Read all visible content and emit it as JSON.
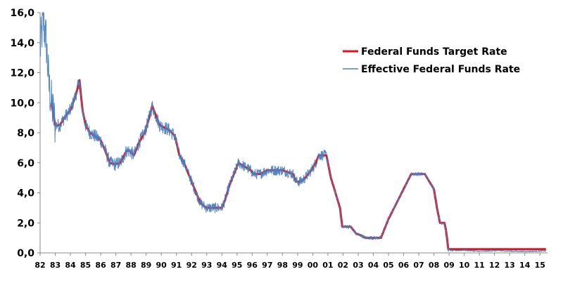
{
  "chart_data": {
    "type": "line",
    "title": "",
    "xlabel": "",
    "ylabel": "",
    "ylim": [
      0,
      16
    ],
    "y_ticks": [
      0,
      2,
      4,
      6,
      8,
      10,
      12,
      14,
      16
    ],
    "y_tick_labels": [
      "0,0",
      "2,0",
      "4,0",
      "6,0",
      "8,0",
      "10,0",
      "12,0",
      "14,0",
      "16,0"
    ],
    "xlim": [
      1982,
      2015.5
    ],
    "x_ticks": [
      1982,
      1983,
      1984,
      1985,
      1986,
      1987,
      1988,
      1989,
      1990,
      1991,
      1992,
      1993,
      1994,
      1995,
      1996,
      1997,
      1998,
      1999,
      2000,
      2001,
      2002,
      2003,
      2004,
      2005,
      2006,
      2007,
      2008,
      2009,
      2010,
      2011,
      2012,
      2013,
      2014,
      2015
    ],
    "x_tick_labels": [
      "82",
      "83",
      "84",
      "85",
      "86",
      "87",
      "88",
      "89",
      "90",
      "91",
      "92",
      "93",
      "94",
      "95",
      "96",
      "97",
      "98",
      "99",
      "00",
      "01",
      "02",
      "03",
      "04",
      "05",
      "06",
      "07",
      "08",
      "09",
      "10",
      "11",
      "12",
      "13",
      "14",
      "15"
    ],
    "grid": false,
    "legend_position": "top-right",
    "series": [
      {
        "name": "Federal Funds Target Rate",
        "color": "#e3101a",
        "x": [
          1982.75,
          1983.0,
          1983.3,
          1983.6,
          1984.0,
          1984.35,
          1984.6,
          1984.8,
          1985.0,
          1985.3,
          1985.6,
          1986.0,
          1986.3,
          1986.6,
          1986.9,
          1987.3,
          1987.7,
          1987.9,
          1988.2,
          1988.5,
          1988.9,
          1989.2,
          1989.4,
          1989.7,
          1989.9,
          1990.5,
          1990.9,
          1991.2,
          1991.5,
          1991.9,
          1992.3,
          1992.6,
          1993.0,
          1993.5,
          1994.0,
          1994.2,
          1994.5,
          1994.9,
          1995.1,
          1995.5,
          1995.9,
          1996.1,
          1996.5,
          1997.0,
          1997.5,
          1998.0,
          1998.7,
          1998.9,
          1999.2,
          1999.5,
          1999.9,
          2000.2,
          2000.4,
          2000.9,
          2001.0,
          2001.2,
          2001.5,
          2001.8,
          2001.95,
          2002.5,
          2002.9,
          2003.0,
          2003.5,
          2004.0,
          2004.5,
          2004.7,
          2005.0,
          2005.5,
          2006.0,
          2006.5,
          2006.9,
          2007.4,
          2007.7,
          2008.0,
          2008.2,
          2008.4,
          2008.7,
          2008.8,
          2008.95,
          2009.2,
          2010.0,
          2011.0,
          2012.0,
          2013.0,
          2014.0,
          2015.0,
          2015.4
        ],
        "y": [
          10.0,
          8.5,
          8.5,
          9.0,
          9.5,
          10.5,
          11.5,
          9.5,
          8.5,
          8.0,
          7.8,
          7.5,
          6.8,
          6.0,
          5.9,
          6.0,
          6.8,
          6.8,
          6.5,
          7.3,
          8.0,
          9.0,
          9.8,
          9.0,
          8.5,
          8.2,
          7.8,
          6.5,
          6.0,
          5.0,
          4.0,
          3.3,
          3.0,
          3.0,
          3.0,
          3.5,
          4.5,
          5.5,
          6.0,
          5.75,
          5.5,
          5.25,
          5.25,
          5.5,
          5.5,
          5.5,
          5.25,
          4.75,
          4.75,
          5.0,
          5.5,
          6.0,
          6.5,
          6.5,
          6.0,
          5.0,
          4.0,
          3.0,
          1.75,
          1.75,
          1.25,
          1.25,
          1.0,
          1.0,
          1.0,
          1.5,
          2.25,
          3.25,
          4.25,
          5.25,
          5.25,
          5.25,
          4.75,
          4.25,
          3.0,
          2.0,
          2.0,
          1.5,
          0.25,
          0.25,
          0.25,
          0.25,
          0.25,
          0.25,
          0.25,
          0.25,
          0.25
        ]
      },
      {
        "name": "Effective Federal Funds Rate",
        "color": "#4a7fbf",
        "x": [
          1982.0,
          1982.2,
          1982.4,
          1982.5,
          1982.6,
          1982.75,
          1983.0,
          1983.3,
          1983.6,
          1984.0,
          1984.35,
          1984.6,
          1984.8,
          1985.0,
          1985.3,
          1985.6,
          1986.0,
          1986.3,
          1986.6,
          1986.9,
          1987.3,
          1987.7,
          1987.9,
          1988.2,
          1988.5,
          1988.9,
          1989.2,
          1989.4,
          1989.7,
          1989.9,
          1990.5,
          1990.9,
          1991.2,
          1991.5,
          1991.9,
          1992.3,
          1992.6,
          1993.0,
          1993.5,
          1994.0,
          1994.2,
          1994.5,
          1994.9,
          1995.1,
          1995.5,
          1995.9,
          1996.1,
          1996.5,
          1997.0,
          1997.5,
          1998.0,
          1998.7,
          1998.9,
          1999.2,
          1999.5,
          1999.9,
          2000.2,
          2000.4,
          2000.9,
          2001.0,
          2001.2,
          2001.5,
          2001.8,
          2001.95,
          2002.5,
          2002.9,
          2003.0,
          2003.5,
          2004.0,
          2004.5,
          2004.7,
          2005.0,
          2005.5,
          2006.0,
          2006.5,
          2006.9,
          2007.4,
          2007.7,
          2008.0,
          2008.2,
          2008.4,
          2008.7,
          2008.8,
          2008.95,
          2009.2,
          2010.0,
          2011.0,
          2012.0,
          2013.0,
          2014.0,
          2015.0,
          2015.4
        ],
        "y": [
          13.5,
          15.5,
          14.2,
          12.5,
          11.0,
          10.0,
          8.5,
          8.5,
          9.0,
          9.5,
          10.5,
          11.5,
          9.5,
          8.5,
          8.0,
          7.8,
          7.5,
          6.8,
          6.0,
          5.9,
          6.0,
          6.8,
          6.8,
          6.5,
          7.3,
          8.0,
          9.0,
          9.8,
          9.0,
          8.5,
          8.2,
          7.8,
          6.5,
          6.0,
          5.0,
          4.0,
          3.3,
          3.0,
          3.0,
          3.0,
          3.5,
          4.5,
          5.5,
          6.0,
          5.75,
          5.5,
          5.25,
          5.25,
          5.5,
          5.5,
          5.5,
          5.25,
          4.75,
          4.75,
          5.0,
          5.5,
          6.0,
          6.5,
          6.5,
          6.0,
          5.0,
          4.0,
          3.0,
          1.75,
          1.75,
          1.25,
          1.25,
          1.0,
          1.0,
          1.0,
          1.5,
          2.25,
          3.25,
          4.25,
          5.25,
          5.25,
          5.25,
          4.75,
          4.25,
          3.0,
          2.0,
          2.0,
          1.5,
          0.2,
          0.15,
          0.18,
          0.1,
          0.15,
          0.12,
          0.1,
          0.12,
          0.13
        ]
      }
    ]
  }
}
